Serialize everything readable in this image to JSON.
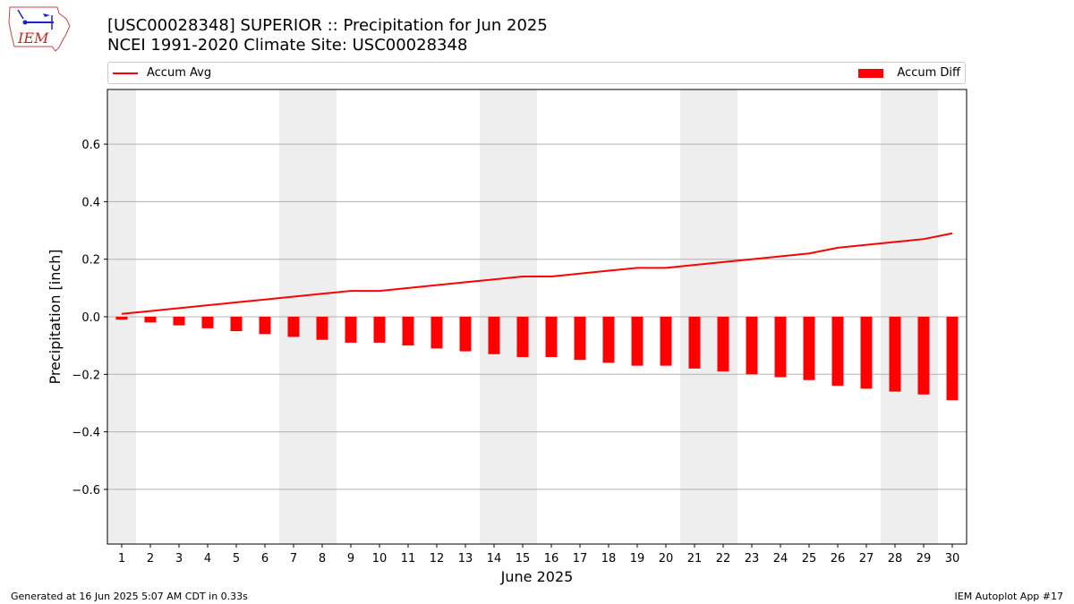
{
  "header": {
    "title_line1": "[USC00028348] SUPERIOR :: Precipitation for Jun 2025",
    "title_line2": "NCEI 1991-2020 Climate Site: USC00028348",
    "logo_text": "IEM"
  },
  "legend": {
    "line_label": "Accum Avg",
    "bar_label": "Accum Diff"
  },
  "footer": {
    "left": "Generated at 16 Jun 2025 5:07 AM CDT in 0.33s",
    "right": "IEM Autoplot App #17"
  },
  "colors": {
    "series": "#ff0000",
    "shade": "#eeeeee",
    "grid": "#b0b0b0"
  },
  "chart_data": {
    "type": "bar",
    "xlabel": "June 2025",
    "ylabel": "Precipitation [inch]",
    "x": [
      1,
      2,
      3,
      4,
      5,
      6,
      7,
      8,
      9,
      10,
      11,
      12,
      13,
      14,
      15,
      16,
      17,
      18,
      19,
      20,
      21,
      22,
      23,
      24,
      25,
      26,
      27,
      28,
      29,
      30
    ],
    "ylim": [
      -0.79,
      0.79
    ],
    "yticks": [
      -0.6,
      -0.4,
      -0.2,
      0.0,
      0.2,
      0.4,
      0.6
    ],
    "ytick_labels": [
      "−0.6",
      "−0.4",
      "−0.2",
      "0.0",
      "0.2",
      "0.4",
      "0.6"
    ],
    "grid": "horizontal",
    "weekend_shading": [
      [
        1,
        1
      ],
      [
        7,
        8
      ],
      [
        14,
        15
      ],
      [
        21,
        22
      ],
      [
        28,
        29
      ]
    ],
    "series": [
      {
        "name": "Accum Avg",
        "type": "line",
        "values": [
          0.01,
          0.02,
          0.03,
          0.04,
          0.05,
          0.06,
          0.07,
          0.08,
          0.09,
          0.09,
          0.1,
          0.11,
          0.12,
          0.13,
          0.14,
          0.14,
          0.15,
          0.16,
          0.17,
          0.17,
          0.18,
          0.19,
          0.2,
          0.21,
          0.22,
          0.24,
          0.25,
          0.26,
          0.27,
          0.29
        ]
      },
      {
        "name": "Accum Diff",
        "type": "bar",
        "values": [
          -0.01,
          -0.02,
          -0.03,
          -0.04,
          -0.05,
          -0.06,
          -0.07,
          -0.08,
          -0.09,
          -0.09,
          -0.1,
          -0.11,
          -0.12,
          -0.13,
          -0.14,
          -0.14,
          -0.15,
          -0.16,
          -0.17,
          -0.17,
          -0.18,
          -0.19,
          -0.2,
          -0.21,
          -0.22,
          -0.24,
          -0.25,
          -0.26,
          -0.27,
          -0.29
        ]
      }
    ]
  }
}
